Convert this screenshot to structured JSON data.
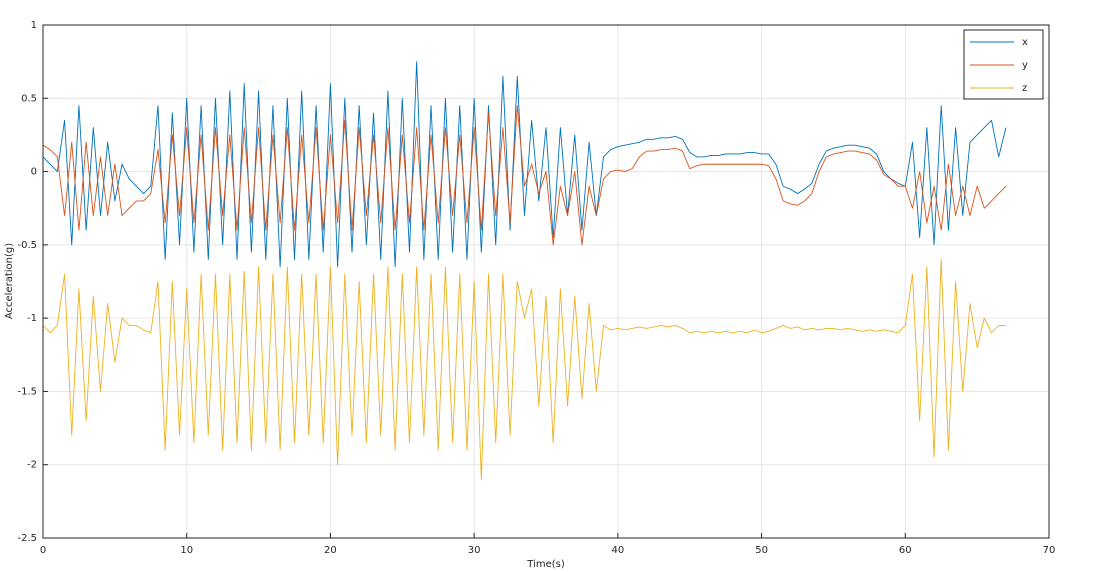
{
  "chart_data": {
    "type": "line",
    "xlabel": "Time(s)",
    "ylabel": "Acceleration(g)",
    "x": [
      0,
      0.5,
      1,
      1.5,
      2,
      2.5,
      3,
      3.5,
      4,
      4.5,
      5,
      5.5,
      6,
      6.5,
      7,
      7.5,
      8,
      8.5,
      9,
      9.5,
      10,
      10.5,
      11,
      11.5,
      12,
      12.5,
      13,
      13.5,
      14,
      14.5,
      15,
      15.5,
      16,
      16.5,
      17,
      17.5,
      18,
      18.5,
      19,
      19.5,
      20,
      20.5,
      21,
      21.5,
      22,
      22.5,
      23,
      23.5,
      24,
      24.5,
      25,
      25.5,
      26,
      26.5,
      27,
      27.5,
      28,
      28.5,
      29,
      29.5,
      30,
      30.5,
      31,
      31.5,
      32,
      32.5,
      33,
      33.5,
      34,
      34.5,
      35,
      35.5,
      36,
      36.5,
      37,
      37.5,
      38,
      38.5,
      39,
      39.5,
      40,
      40.5,
      41,
      41.5,
      42,
      42.5,
      43,
      43.5,
      44,
      44.5,
      45,
      45.5,
      46,
      46.5,
      47,
      47.5,
      48,
      48.5,
      49,
      49.5,
      50,
      50.5,
      51,
      51.5,
      52,
      52.5,
      53,
      53.5,
      54,
      54.5,
      55,
      55.5,
      56,
      56.5,
      57,
      57.5,
      58,
      58.5,
      59,
      59.5,
      60,
      60.5,
      61,
      61.5,
      62,
      62.5,
      63,
      63.5,
      64,
      64.5,
      65,
      65.5,
      66,
      66.5,
      67
    ],
    "series": [
      {
        "name": "x",
        "color": "#0072bd",
        "values": [
          0.1,
          0.05,
          0.0,
          0.35,
          -0.5,
          0.45,
          -0.4,
          0.3,
          -0.3,
          0.2,
          -0.2,
          0.05,
          -0.05,
          -0.1,
          -0.15,
          -0.1,
          0.45,
          -0.6,
          0.4,
          -0.5,
          0.5,
          -0.55,
          0.45,
          -0.6,
          0.5,
          -0.5,
          0.55,
          -0.6,
          0.6,
          -0.55,
          0.55,
          -0.6,
          0.45,
          -0.65,
          0.5,
          -0.6,
          0.55,
          -0.6,
          0.45,
          -0.55,
          0.6,
          -0.65,
          0.5,
          -0.55,
          0.45,
          -0.5,
          0.4,
          -0.6,
          0.55,
          -0.65,
          0.5,
          -0.55,
          0.75,
          -0.6,
          0.45,
          -0.6,
          0.5,
          -0.55,
          0.45,
          -0.6,
          0.5,
          -0.55,
          0.45,
          -0.5,
          0.65,
          -0.4,
          0.65,
          -0.3,
          0.35,
          -0.2,
          0.3,
          -0.45,
          0.3,
          -0.3,
          0.25,
          -0.4,
          0.2,
          -0.3,
          0.1,
          0.15,
          0.17,
          0.18,
          0.19,
          0.2,
          0.22,
          0.22,
          0.23,
          0.23,
          0.24,
          0.22,
          0.13,
          0.1,
          0.1,
          0.11,
          0.11,
          0.12,
          0.12,
          0.12,
          0.13,
          0.13,
          0.12,
          0.12,
          0.05,
          -0.1,
          -0.12,
          -0.15,
          -0.12,
          -0.08,
          0.05,
          0.14,
          0.16,
          0.17,
          0.18,
          0.18,
          0.17,
          0.16,
          0.12,
          0.0,
          -0.05,
          -0.08,
          -0.1,
          0.2,
          -0.45,
          0.3,
          -0.5,
          0.45,
          -0.4,
          0.3,
          -0.3,
          0.2,
          0.25,
          0.3,
          0.35,
          0.1,
          0.3
        ]
      },
      {
        "name": "y",
        "color": "#d95319",
        "values": [
          0.18,
          0.15,
          0.1,
          -0.3,
          0.2,
          -0.4,
          0.2,
          -0.3,
          0.1,
          -0.3,
          0.05,
          -0.3,
          -0.25,
          -0.2,
          -0.2,
          -0.15,
          0.15,
          -0.35,
          0.25,
          -0.3,
          0.3,
          -0.35,
          0.25,
          -0.4,
          0.3,
          -0.3,
          0.25,
          -0.4,
          0.3,
          -0.35,
          0.3,
          -0.4,
          0.25,
          -0.35,
          0.3,
          -0.4,
          0.25,
          -0.35,
          0.3,
          -0.4,
          0.25,
          -0.35,
          0.35,
          -0.4,
          0.3,
          -0.3,
          0.25,
          -0.35,
          0.3,
          -0.4,
          0.25,
          -0.35,
          0.3,
          -0.4,
          0.25,
          -0.35,
          0.3,
          -0.3,
          0.25,
          -0.35,
          0.3,
          -0.4,
          0.4,
          -0.3,
          0.3,
          -0.35,
          0.45,
          -0.1,
          0.05,
          -0.15,
          0.0,
          -0.5,
          -0.1,
          -0.3,
          0.0,
          -0.5,
          -0.1,
          -0.3,
          -0.05,
          0.0,
          0.01,
          0.0,
          0.02,
          0.1,
          0.14,
          0.14,
          0.15,
          0.15,
          0.16,
          0.14,
          0.02,
          0.04,
          0.05,
          0.05,
          0.05,
          0.05,
          0.05,
          0.05,
          0.05,
          0.05,
          0.05,
          0.04,
          -0.05,
          -0.2,
          -0.22,
          -0.23,
          -0.2,
          -0.15,
          0.0,
          0.1,
          0.12,
          0.13,
          0.14,
          0.14,
          0.13,
          0.12,
          0.08,
          -0.02,
          -0.05,
          -0.1,
          -0.1,
          -0.25,
          0.0,
          -0.35,
          -0.1,
          -0.4,
          0.05,
          -0.3,
          -0.1,
          -0.3,
          -0.1,
          -0.25,
          -0.2,
          -0.15,
          -0.1
        ]
      },
      {
        "name": "z",
        "color": "#edb120",
        "values": [
          -1.05,
          -1.1,
          -1.05,
          -0.7,
          -1.8,
          -0.8,
          -1.7,
          -0.85,
          -1.5,
          -0.9,
          -1.3,
          -1.0,
          -1.05,
          -1.05,
          -1.08,
          -1.1,
          -0.75,
          -1.9,
          -0.75,
          -1.8,
          -0.8,
          -1.85,
          -0.7,
          -1.8,
          -0.7,
          -1.9,
          -0.7,
          -1.85,
          -0.68,
          -1.9,
          -0.65,
          -1.85,
          -0.7,
          -1.9,
          -0.65,
          -1.85,
          -0.7,
          -1.8,
          -0.7,
          -1.85,
          -0.65,
          -2.0,
          -0.7,
          -1.8,
          -0.75,
          -1.85,
          -0.7,
          -1.8,
          -0.65,
          -1.9,
          -0.7,
          -1.85,
          -0.65,
          -1.8,
          -0.7,
          -1.9,
          -0.65,
          -1.85,
          -0.7,
          -1.9,
          -0.75,
          -2.1,
          -0.7,
          -1.85,
          -0.7,
          -1.8,
          -0.75,
          -1.0,
          -0.8,
          -1.6,
          -0.85,
          -1.85,
          -0.8,
          -1.6,
          -0.85,
          -1.55,
          -0.9,
          -1.5,
          -1.05,
          -1.08,
          -1.07,
          -1.08,
          -1.07,
          -1.06,
          -1.07,
          -1.06,
          -1.05,
          -1.06,
          -1.05,
          -1.07,
          -1.1,
          -1.09,
          -1.1,
          -1.09,
          -1.1,
          -1.09,
          -1.1,
          -1.09,
          -1.1,
          -1.08,
          -1.1,
          -1.09,
          -1.07,
          -1.05,
          -1.07,
          -1.06,
          -1.08,
          -1.07,
          -1.08,
          -1.07,
          -1.07,
          -1.08,
          -1.07,
          -1.08,
          -1.09,
          -1.08,
          -1.09,
          -1.08,
          -1.09,
          -1.1,
          -1.05,
          -0.7,
          -1.7,
          -0.65,
          -1.95,
          -0.6,
          -1.9,
          -0.75,
          -1.5,
          -0.9,
          -1.2,
          -1.0,
          -1.1,
          -1.05,
          -1.05
        ]
      }
    ],
    "xlim": [
      0,
      70
    ],
    "xticks": [
      0,
      10,
      20,
      30,
      40,
      50,
      60,
      70
    ],
    "ylim": [
      -2.5,
      1
    ],
    "yticks": [
      1,
      0.5,
      0,
      -0.5,
      -1,
      -1.5,
      -2,
      -2.5
    ],
    "grid": true,
    "legend": "northeast"
  }
}
